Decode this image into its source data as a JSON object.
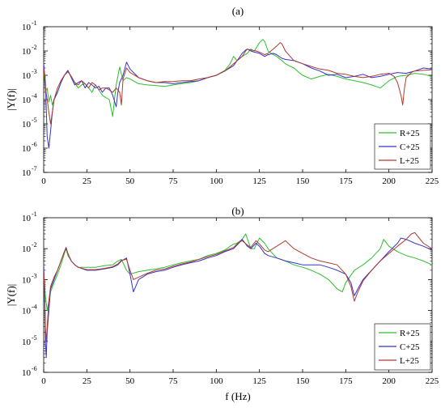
{
  "chart_data": [
    {
      "type": "line",
      "panel_label": "(a)",
      "ylabel": "|Y(f)|",
      "xlabel": "",
      "yscale": "log",
      "xlim": [
        0,
        225
      ],
      "ylim": [
        1e-07,
        0.1
      ],
      "xticks": [
        0,
        25,
        50,
        75,
        100,
        125,
        150,
        175,
        200,
        225
      ],
      "yticks": [
        {
          "value": 1e-07,
          "base": "10",
          "exp": "-7"
        },
        {
          "value": 1e-06,
          "base": "10",
          "exp": "-6"
        },
        {
          "value": 1e-05,
          "base": "10",
          "exp": "-5"
        },
        {
          "value": 0.0001,
          "base": "10",
          "exp": "-4"
        },
        {
          "value": 0.001,
          "base": "10",
          "exp": "-3"
        },
        {
          "value": 0.01,
          "base": "10",
          "exp": "-2"
        },
        {
          "value": 0.1,
          "base": "10",
          "exp": "-1"
        }
      ],
      "legend_position": "bottom-right",
      "series": [
        {
          "name": "R+25",
          "color": "#2dbf2d",
          "x": [
            0,
            1,
            2,
            3,
            4,
            5,
            6,
            8,
            10,
            12,
            14,
            16,
            18,
            20,
            22,
            24,
            26,
            28,
            30,
            32,
            34,
            36,
            38,
            40,
            41,
            42,
            44,
            46,
            48,
            50,
            55,
            60,
            65,
            70,
            75,
            80,
            85,
            90,
            95,
            100,
            105,
            108,
            110,
            112,
            115,
            118,
            120,
            122,
            125,
            127,
            128,
            130,
            133,
            135,
            138,
            140,
            142,
            145,
            148,
            150,
            155,
            160,
            165,
            170,
            175,
            180,
            185,
            190,
            195,
            200,
            205,
            210,
            215,
            220,
            225
          ],
          "y": [
            0.002,
            0.0002,
            0.0003,
            8e-05,
            0.00015,
            6e-05,
            0.0001,
            0.0002,
            0.0005,
            0.001,
            0.0015,
            0.0009,
            0.0005,
            0.0003,
            0.0004,
            0.00045,
            0.0003,
            0.0002,
            0.0004,
            0.00025,
            0.00015,
            0.00012,
            0.0001,
            2e-05,
            0.0001,
            0.0004,
            0.0022,
            0.0006,
            0.0008,
            0.0007,
            0.00045,
            0.0004,
            0.00038,
            0.00035,
            0.0004,
            0.00045,
            0.0005,
            0.0006,
            0.0008,
            0.001,
            0.0016,
            0.003,
            0.006,
            0.004,
            0.006,
            0.008,
            0.012,
            0.01,
            0.022,
            0.03,
            0.025,
            0.01,
            0.007,
            0.006,
            0.004,
            0.003,
            0.0025,
            0.002,
            0.0013,
            0.001,
            0.0007,
            0.0009,
            0.0011,
            0.0009,
            0.0007,
            0.0006,
            0.0005,
            0.0004,
            0.0003,
            0.0006,
            0.0009,
            0.001,
            0.0012,
            0.0011,
            0.0009
          ]
        },
        {
          "name": "C+25",
          "color": "#3333cc",
          "x": [
            0,
            1,
            2,
            3,
            4,
            5,
            6,
            8,
            10,
            12,
            14,
            16,
            18,
            20,
            22,
            24,
            26,
            28,
            30,
            32,
            34,
            36,
            38,
            40,
            42,
            43,
            44,
            46,
            48,
            50,
            55,
            60,
            65,
            70,
            75,
            80,
            85,
            90,
            95,
            100,
            105,
            110,
            113,
            115,
            117,
            118,
            120,
            122,
            125,
            128,
            130,
            133,
            135,
            138,
            140,
            145,
            150,
            155,
            160,
            165,
            170,
            175,
            180,
            185,
            190,
            195,
            200,
            205,
            210,
            215,
            220,
            225
          ],
          "y": [
            0.003,
            0.0005,
            3e-06,
            1e-06,
            5e-06,
            3e-05,
            0.0001,
            0.0002,
            0.0005,
            0.001,
            0.0016,
            0.0008,
            0.0004,
            0.0005,
            0.0006,
            0.0003,
            0.0005,
            0.0004,
            0.0003,
            0.00035,
            0.0002,
            0.0003,
            0.0003,
            0.00015,
            5e-05,
            0.0002,
            0.0005,
            0.001,
            0.0035,
            0.0018,
            0.0008,
            0.0006,
            0.0005,
            0.0005,
            0.00045,
            0.0005,
            0.00055,
            0.0006,
            0.0008,
            0.001,
            0.0015,
            0.0025,
            0.005,
            0.008,
            0.011,
            0.012,
            0.01,
            0.009,
            0.008,
            0.006,
            0.007,
            0.008,
            0.007,
            0.005,
            0.0045,
            0.004,
            0.003,
            0.002,
            0.0015,
            0.001,
            0.0011,
            0.0008,
            0.0009,
            0.0011,
            0.0008,
            0.0009,
            0.0011,
            0.0013,
            0.0012,
            0.0015,
            0.002,
            0.0018
          ]
        },
        {
          "name": "L+25",
          "color": "#b03a2e",
          "x": [
            0,
            1,
            2,
            3,
            4,
            5,
            6,
            8,
            10,
            12,
            14,
            16,
            18,
            20,
            22,
            24,
            26,
            28,
            30,
            32,
            34,
            36,
            38,
            40,
            42,
            44,
            45,
            46,
            48,
            50,
            55,
            60,
            65,
            70,
            75,
            80,
            85,
            90,
            95,
            100,
            105,
            110,
            115,
            117,
            118,
            120,
            123,
            125,
            128,
            130,
            133,
            135,
            137,
            138,
            140,
            145,
            150,
            155,
            160,
            165,
            170,
            175,
            180,
            185,
            190,
            195,
            200,
            203,
            205,
            207,
            208,
            209,
            210,
            213,
            215,
            220,
            225
          ],
          "y": [
            0.002,
            0.0003,
            0.0001,
            3e-05,
            1e-05,
            3e-05,
            0.0001,
            0.0003,
            0.0006,
            0.001,
            0.0014,
            0.0009,
            0.0005,
            0.0004,
            0.0006,
            0.00045,
            0.0003,
            0.0005,
            0.0004,
            0.00025,
            0.0003,
            0.0003,
            0.00025,
            0.0002,
            0.0003,
            0.0002,
            6e-05,
            0.0007,
            0.002,
            0.0013,
            0.0008,
            0.0006,
            0.0005,
            0.00055,
            0.00055,
            0.0006,
            0.0006,
            0.0007,
            0.0008,
            0.001,
            0.0015,
            0.003,
            0.006,
            0.01,
            0.012,
            0.011,
            0.01,
            0.009,
            0.007,
            0.008,
            0.012,
            0.016,
            0.022,
            0.02,
            0.01,
            0.004,
            0.003,
            0.0023,
            0.0018,
            0.0016,
            0.0012,
            0.0011,
            0.0009,
            0.0008,
            0.0009,
            0.0011,
            0.0012,
            0.0009,
            0.0005,
            0.00015,
            6e-05,
            0.0003,
            0.0008,
            0.0013,
            0.0015,
            0.0016,
            0.0017
          ]
        }
      ]
    },
    {
      "type": "line",
      "panel_label": "(b)",
      "ylabel": "|Y(f)|",
      "xlabel": "f (Hz)",
      "yscale": "log",
      "xlim": [
        0,
        225
      ],
      "ylim": [
        1e-06,
        0.1
      ],
      "xticks": [
        0,
        25,
        50,
        75,
        100,
        125,
        150,
        175,
        200,
        225
      ],
      "yticks": [
        {
          "value": 1e-06,
          "base": "10",
          "exp": "-6"
        },
        {
          "value": 1e-05,
          "base": "10",
          "exp": "-5"
        },
        {
          "value": 0.0001,
          "base": "10",
          "exp": "-4"
        },
        {
          "value": 0.001,
          "base": "10",
          "exp": "-3"
        },
        {
          "value": 0.01,
          "base": "10",
          "exp": "-2"
        },
        {
          "value": 0.1,
          "base": "10",
          "exp": "-1"
        }
      ],
      "legend_position": "bottom-right",
      "series": [
        {
          "name": "R+25",
          "color": "#2dbf2d",
          "x": [
            0,
            1,
            2,
            3,
            4,
            6,
            8,
            10,
            12,
            13,
            14,
            16,
            18,
            20,
            25,
            30,
            35,
            40,
            43,
            45,
            48,
            50,
            55,
            60,
            65,
            70,
            75,
            80,
            85,
            90,
            95,
            100,
            105,
            108,
            110,
            112,
            115,
            117,
            120,
            122,
            125,
            128,
            130,
            135,
            140,
            145,
            150,
            155,
            160,
            165,
            170,
            173,
            175,
            180,
            185,
            190,
            195,
            197,
            200,
            205,
            210,
            215,
            220,
            225
          ],
          "y": [
            0.002,
            0.0003,
            0.0001,
            0.0002,
            0.0004,
            0.0008,
            0.0015,
            0.003,
            0.007,
            0.01,
            0.006,
            0.004,
            0.003,
            0.0025,
            0.0025,
            0.0025,
            0.0028,
            0.003,
            0.004,
            0.0045,
            0.002,
            0.0015,
            0.0018,
            0.002,
            0.0022,
            0.0025,
            0.003,
            0.0035,
            0.004,
            0.0045,
            0.006,
            0.007,
            0.009,
            0.012,
            0.014,
            0.015,
            0.02,
            0.03,
            0.01,
            0.01,
            0.022,
            0.015,
            0.01,
            0.005,
            0.004,
            0.003,
            0.0025,
            0.002,
            0.0015,
            0.001,
            0.0005,
            0.0004,
            0.0008,
            0.002,
            0.003,
            0.005,
            0.01,
            0.02,
            0.012,
            0.008,
            0.006,
            0.005,
            0.004,
            0.003
          ]
        },
        {
          "name": "C+25",
          "color": "#3333cc",
          "x": [
            0,
            0.5,
            1,
            1.5,
            2,
            3,
            4,
            6,
            8,
            10,
            12,
            13,
            14,
            16,
            18,
            20,
            25,
            30,
            35,
            40,
            43,
            45,
            48,
            50,
            52,
            55,
            60,
            65,
            70,
            75,
            80,
            85,
            90,
            95,
            100,
            105,
            110,
            113,
            115,
            118,
            120,
            123,
            125,
            128,
            130,
            135,
            140,
            145,
            150,
            155,
            160,
            165,
            170,
            175,
            178,
            180,
            182,
            185,
            190,
            195,
            200,
            205,
            207,
            210,
            215,
            220,
            225
          ],
          "y": [
            0.003,
            0.0004,
            1e-05,
            3e-06,
            2e-05,
            0.0001,
            0.0005,
            0.001,
            0.002,
            0.004,
            0.008,
            0.011,
            0.007,
            0.004,
            0.003,
            0.0025,
            0.002,
            0.002,
            0.0022,
            0.0025,
            0.003,
            0.004,
            0.005,
            0.0015,
            0.0004,
            0.001,
            0.0015,
            0.0018,
            0.002,
            0.0025,
            0.003,
            0.0035,
            0.004,
            0.005,
            0.006,
            0.008,
            0.01,
            0.015,
            0.02,
            0.012,
            0.01,
            0.015,
            0.012,
            0.007,
            0.006,
            0.005,
            0.004,
            0.0035,
            0.003,
            0.003,
            0.003,
            0.0025,
            0.002,
            0.0015,
            0.0008,
            0.0003,
            0.0005,
            0.001,
            0.002,
            0.004,
            0.008,
            0.015,
            0.022,
            0.02,
            0.015,
            0.012,
            0.009
          ]
        },
        {
          "name": "L+25",
          "color": "#b03a2e",
          "x": [
            0,
            0.5,
            1,
            1.5,
            2,
            3,
            4,
            6,
            8,
            10,
            12,
            13,
            14,
            16,
            18,
            20,
            25,
            30,
            35,
            40,
            43,
            45,
            48,
            50,
            52,
            55,
            60,
            65,
            70,
            75,
            80,
            85,
            90,
            95,
            100,
            105,
            110,
            113,
            115,
            118,
            120,
            123,
            125,
            128,
            130,
            135,
            140,
            145,
            150,
            155,
            160,
            165,
            170,
            175,
            178,
            180,
            182,
            185,
            190,
            195,
            200,
            205,
            210,
            213,
            215,
            220,
            225
          ],
          "y": [
            0.002,
            0.0005,
            3e-05,
            1e-05,
            3e-05,
            0.0002,
            0.0006,
            0.0012,
            0.002,
            0.004,
            0.008,
            0.01,
            0.007,
            0.004,
            0.003,
            0.0025,
            0.0021,
            0.0021,
            0.0023,
            0.0026,
            0.0032,
            0.0042,
            0.0045,
            0.002,
            0.001,
            0.0012,
            0.0016,
            0.002,
            0.0022,
            0.0027,
            0.0032,
            0.0037,
            0.0045,
            0.0055,
            0.0065,
            0.0085,
            0.011,
            0.016,
            0.018,
            0.013,
            0.011,
            0.018,
            0.014,
            0.009,
            0.008,
            0.012,
            0.018,
            0.01,
            0.007,
            0.005,
            0.004,
            0.0035,
            0.003,
            0.0015,
            0.0006,
            0.0002,
            0.0004,
            0.0009,
            0.002,
            0.004,
            0.007,
            0.012,
            0.02,
            0.03,
            0.033,
            0.015,
            0.01
          ]
        }
      ]
    }
  ]
}
